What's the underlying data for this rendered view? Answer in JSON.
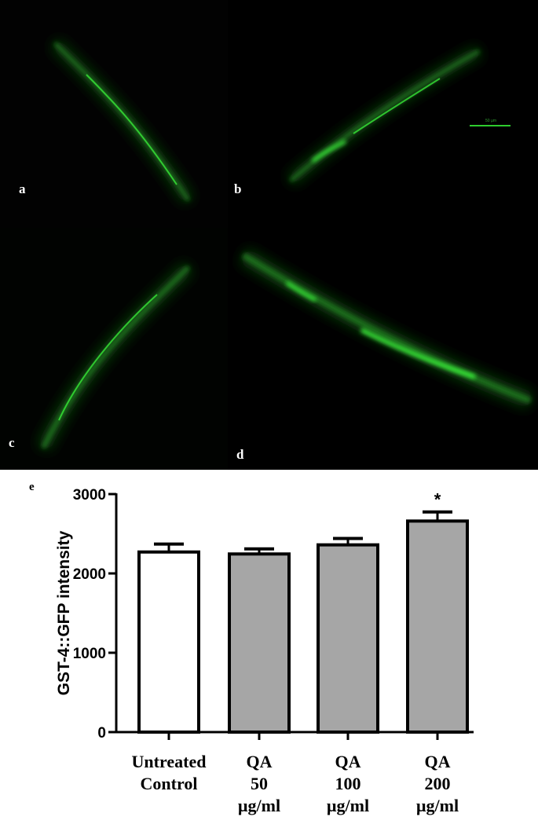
{
  "micrograph": {
    "panels": [
      "a",
      "b",
      "c",
      "d"
    ],
    "scale_bar_label": "50 µm",
    "fluorescence_color": "#3cff3c"
  },
  "figure_label": "e",
  "chart_data": {
    "type": "bar",
    "ylabel": "GST-4::GFP intensity",
    "xlabel": "",
    "ylim": [
      0,
      3000
    ],
    "yticks": [
      0,
      1000,
      2000,
      3000
    ],
    "categories": [
      [
        "Untreated",
        "Control"
      ],
      [
        "QA",
        "50",
        "µg/ml"
      ],
      [
        "QA",
        "100",
        "µg/ml"
      ],
      [
        "QA",
        "200",
        "µg/ml"
      ]
    ],
    "values": [
      2270,
      2245,
      2360,
      2660
    ],
    "errors": [
      100,
      65,
      80,
      115
    ],
    "fills": [
      "#ffffff",
      "#a6a6a6",
      "#a6a6a6",
      "#a6a6a6"
    ],
    "annotations": [
      "",
      "",
      "",
      "*"
    ]
  }
}
